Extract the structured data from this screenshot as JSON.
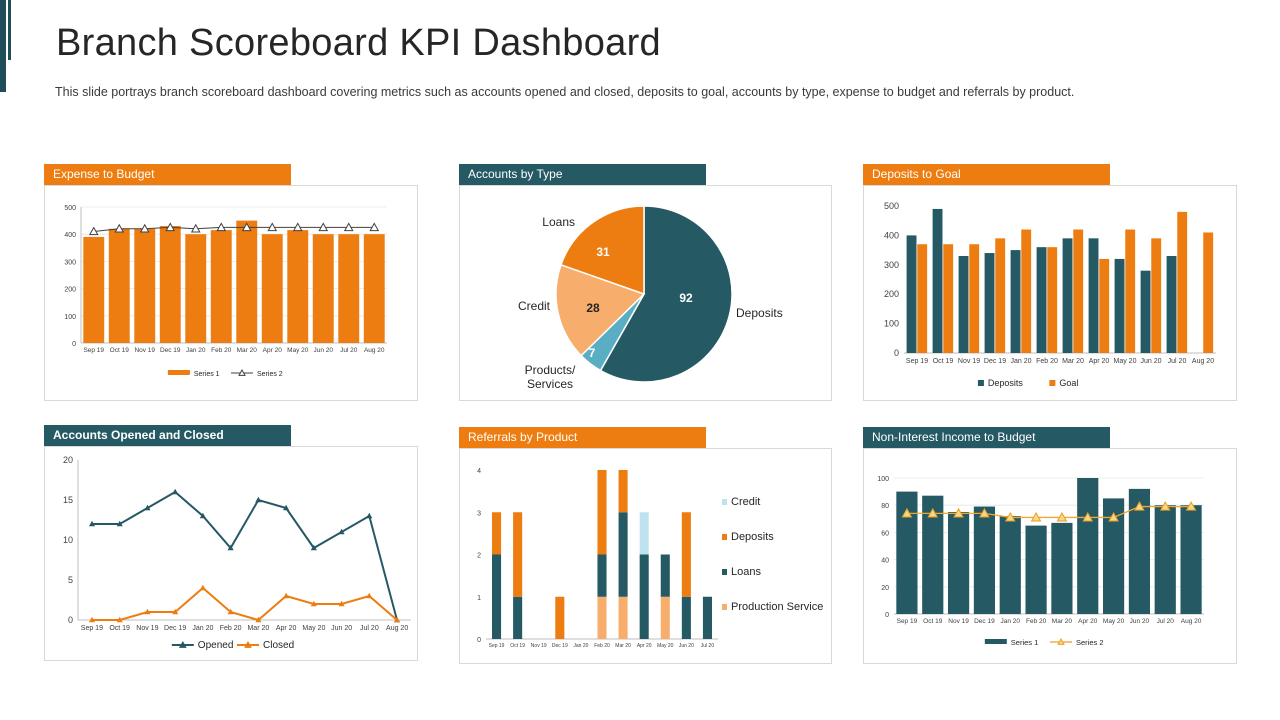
{
  "page": {
    "title": "Branch Scoreboard KPI Dashboard",
    "subtitle": "This slide portrays branch scoreboard dashboard covering metrics such as accounts opened and closed, deposits to goal, accounts by type, expense to budget and referrals by product."
  },
  "colors": {
    "orange": "#ed7d10",
    "teal": "#255964",
    "light_orange": "#f7ad6b",
    "light_blue": "#bfe3ee",
    "products_blue": "#5aaec4"
  },
  "chart_data": [
    {
      "id": "expense",
      "type": "bar",
      "title": "Expense to Budget",
      "categories": [
        "Sep 19",
        "Oct 19",
        "Nov 19",
        "Dec 19",
        "Jan 20",
        "Feb 20",
        "Mar 20",
        "Apr 20",
        "May 20",
        "Jun 20",
        "Jul 20",
        "Aug 20"
      ],
      "series": [
        {
          "name": "Series 1",
          "kind": "bar",
          "values": [
            390,
            420,
            420,
            430,
            400,
            415,
            450,
            400,
            415,
            400,
            400,
            400
          ]
        },
        {
          "name": "Series 2",
          "kind": "line",
          "values": [
            410,
            420,
            420,
            425,
            420,
            425,
            425,
            425,
            425,
            425,
            425,
            425
          ]
        }
      ],
      "yticks": [
        "0",
        "100",
        "200",
        "300",
        "400",
        "500"
      ],
      "ylim": [
        0,
        500
      ]
    },
    {
      "id": "accounts_type",
      "type": "pie",
      "title": "Accounts by Type",
      "slices": [
        {
          "label": "Deposits",
          "value": 92
        },
        {
          "label": "Products/ Services",
          "value": 7
        },
        {
          "label": "Credit",
          "value": 28
        },
        {
          "label": "Loans",
          "value": 31
        }
      ]
    },
    {
      "id": "deposits_goal",
      "type": "bar",
      "title": "Deposits to Goal",
      "categories": [
        "Sep 19",
        "Oct 19",
        "Nov 19",
        "Dec 19",
        "Jan 20",
        "Feb 20",
        "Mar 20",
        "Apr 20",
        "May 20",
        "Jun 20",
        "Jul 20",
        "Aug 20"
      ],
      "series": [
        {
          "name": "Deposits",
          "values": [
            400,
            490,
            330,
            340,
            350,
            360,
            390,
            390,
            320,
            280,
            330,
            0
          ]
        },
        {
          "name": "Goal",
          "values": [
            370,
            370,
            370,
            390,
            420,
            360,
            420,
            320,
            420,
            390,
            480,
            410
          ]
        }
      ],
      "yticks": [
        "0",
        "100",
        "200",
        "300",
        "400",
        "500"
      ],
      "ylim": [
        0,
        500
      ]
    },
    {
      "id": "accounts_oc",
      "type": "line",
      "title": "Accounts Opened and Closed",
      "categories": [
        "Sep 19",
        "Oct 19",
        "Nov 19",
        "Dec 19",
        "Jan 20",
        "Feb 20",
        "Mar 20",
        "Apr 20",
        "May 20",
        "Jun 20",
        "Jul 20",
        "Aug 20"
      ],
      "series": [
        {
          "name": "Opened",
          "values": [
            12,
            12,
            14,
            16,
            13,
            9,
            15,
            14,
            9,
            11,
            13,
            0
          ]
        },
        {
          "name": "Closed",
          "values": [
            0,
            0,
            1,
            1,
            4,
            1,
            0,
            3,
            2,
            2,
            3,
            0
          ]
        }
      ],
      "yticks": [
        "0",
        "5",
        "10",
        "15",
        "20"
      ],
      "ylim": [
        0,
        20
      ]
    },
    {
      "id": "referrals",
      "type": "bar",
      "title": "Referrals by Product",
      "stacked": true,
      "categories": [
        "Sep 19",
        "Oct 19",
        "Nov 19",
        "Dec 19",
        "Jan 20",
        "Feb 20",
        "Mar 20",
        "Apr 20",
        "May 20",
        "Jun 20",
        "Jul 20"
      ],
      "series": [
        {
          "name": "Production Service",
          "values": [
            0,
            0,
            0,
            0,
            0,
            1,
            1,
            0,
            1,
            0,
            0
          ]
        },
        {
          "name": "Loans",
          "values": [
            2,
            1,
            0,
            0,
            0,
            1,
            2,
            2,
            1,
            1,
            1
          ]
        },
        {
          "name": "Deposits",
          "values": [
            1,
            2,
            0,
            1,
            0,
            2,
            1,
            0,
            0,
            2,
            0
          ]
        },
        {
          "name": "Credit",
          "values": [
            0,
            0,
            0,
            0,
            0,
            0,
            0,
            1,
            0,
            0,
            0
          ]
        }
      ],
      "legend": [
        "Credit",
        "Deposits",
        "Loans",
        "Production Service"
      ],
      "yticks": [
        "0",
        "1",
        "2",
        "3",
        "4"
      ],
      "ylim": [
        0,
        4
      ]
    },
    {
      "id": "noninterest",
      "type": "bar",
      "title": "Non-Interest Income to Budget",
      "categories": [
        "Sep 19",
        "Oct 19",
        "Nov 19",
        "Dec 19",
        "Jan 20",
        "Feb 20",
        "Mar 20",
        "Apr 20",
        "May 20",
        "Jun 20",
        "Jul 20",
        "Aug 20"
      ],
      "series": [
        {
          "name": "Series 1",
          "kind": "bar",
          "values": [
            90,
            87,
            75,
            79,
            72,
            65,
            67,
            100,
            85,
            92,
            80,
            80
          ]
        },
        {
          "name": "Series 2",
          "kind": "line",
          "values": [
            74,
            74,
            74,
            74,
            71,
            71,
            71,
            71,
            71,
            79,
            79,
            79
          ]
        }
      ],
      "yticks": [
        "0",
        "20",
        "40",
        "60",
        "80",
        "100"
      ],
      "ylim": [
        0,
        100
      ]
    }
  ]
}
